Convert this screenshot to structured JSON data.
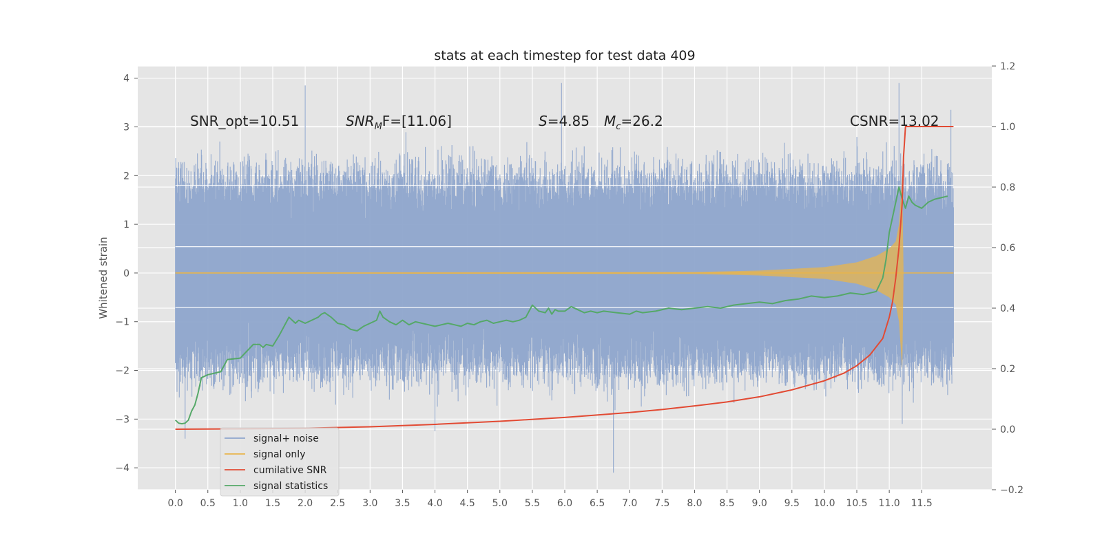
{
  "chart_data": {
    "type": "line",
    "title": "stats at each timestep for test data 409",
    "xlabel": "",
    "ylabel": "Whitened strain",
    "y2label": "",
    "xlim": [
      -0.58,
      12.58
    ],
    "ylim": [
      -4.45,
      4.25
    ],
    "y2lim": [
      -0.2,
      1.2
    ],
    "xticks": [
      "0.0",
      "0.5",
      "1.0",
      "1.5",
      "2.0",
      "2.5",
      "3.0",
      "3.5",
      "4.0",
      "4.5",
      "5.0",
      "5.5",
      "6.0",
      "6.5",
      "7.0",
      "7.5",
      "8.0",
      "8.5",
      "9.0",
      "9.5",
      "10.0",
      "10.5",
      "11.0",
      "11.5"
    ],
    "yticks": [
      "−4",
      "−3",
      "−2",
      "−1",
      "0",
      "1",
      "2",
      "3",
      "4"
    ],
    "y2ticks": [
      "−0.2",
      "0.0",
      "0.2",
      "0.4",
      "0.6",
      "0.8",
      "1.0",
      "1.2"
    ],
    "grid": true,
    "legend_position": "lower-left",
    "annotations": {
      "snr_opt": "SNR_opt=10.51",
      "snr_mf_symbol": "SNR",
      "snr_mf_sub": "M",
      "snr_mf_rest": "F=[11.06]",
      "s_symbol": "S",
      "s_value": "=4.85",
      "mc_symbol": "M",
      "mc_sub": "c",
      "mc_value": "=26.2",
      "csnr": "CSNR=13.02"
    },
    "series": [
      {
        "name": "signal+ noise",
        "color": "#8ea5cc",
        "axis": "left",
        "x_range": [
          0.0,
          11.99
        ],
        "envelope_lower_typical": -1.8,
        "envelope_upper_typical": 1.8,
        "extreme_peaks_x": [
          2.0,
          5.95,
          11.15,
          11.95
        ],
        "extreme_peaks_y": [
          3.85,
          3.9,
          3.9,
          3.35
        ],
        "extreme_troughs_x": [
          0.15,
          4.0,
          6.75,
          11.2
        ],
        "extreme_troughs_y": [
          -3.4,
          -3.25,
          -4.1,
          -3.1
        ]
      },
      {
        "name": "signal only",
        "color": "#e8b54c",
        "axis": "left",
        "x": [
          0,
          8,
          9,
          10,
          10.5,
          10.8,
          11.0,
          11.1,
          11.15,
          11.2,
          11.22,
          11.99
        ],
        "amplitude": [
          0.01,
          0.02,
          0.05,
          0.12,
          0.22,
          0.35,
          0.5,
          0.65,
          1.0,
          2.0,
          0.0,
          0.0
        ]
      },
      {
        "name": "cumilative SNR",
        "color": "#e24a33",
        "axis": "right",
        "x": [
          0,
          1,
          2,
          3,
          4,
          5,
          6,
          7,
          7.5,
          8,
          8.5,
          9,
          9.5,
          10,
          10.3,
          10.5,
          10.7,
          10.9,
          11.0,
          11.05,
          11.1,
          11.15,
          11.2,
          11.22,
          11.25,
          11.3,
          11.99
        ],
        "values": [
          0,
          0.001,
          0.003,
          0.008,
          0.016,
          0.026,
          0.039,
          0.055,
          0.065,
          0.077,
          0.09,
          0.107,
          0.13,
          0.16,
          0.185,
          0.21,
          0.245,
          0.3,
          0.37,
          0.42,
          0.5,
          0.6,
          0.75,
          0.9,
          1.0,
          1.0,
          1.0
        ]
      },
      {
        "name": "signal statistics",
        "color": "#55a868",
        "axis": "right",
        "x": [
          0,
          0.05,
          0.1,
          0.15,
          0.2,
          0.25,
          0.3,
          0.35,
          0.4,
          0.5,
          0.6,
          0.7,
          0.8,
          1.0,
          1.2,
          1.3,
          1.35,
          1.4,
          1.5,
          1.6,
          1.65,
          1.7,
          1.75,
          1.8,
          1.85,
          1.9,
          2.0,
          2.1,
          2.2,
          2.25,
          2.3,
          2.4,
          2.5,
          2.6,
          2.7,
          2.8,
          2.9,
          3.0,
          3.1,
          3.15,
          3.2,
          3.3,
          3.4,
          3.5,
          3.6,
          3.7,
          3.8,
          3.9,
          4.0,
          4.1,
          4.2,
          4.3,
          4.4,
          4.5,
          4.6,
          4.7,
          4.8,
          4.9,
          5.0,
          5.1,
          5.2,
          5.3,
          5.4,
          5.5,
          5.6,
          5.7,
          5.75,
          5.8,
          5.85,
          5.9,
          6.0,
          6.1,
          6.2,
          6.3,
          6.4,
          6.5,
          6.6,
          6.8,
          7.0,
          7.1,
          7.2,
          7.4,
          7.6,
          7.8,
          8.0,
          8.2,
          8.4,
          8.6,
          8.8,
          9.0,
          9.2,
          9.4,
          9.6,
          9.8,
          10.0,
          10.2,
          10.4,
          10.6,
          10.8,
          10.9,
          10.95,
          11.0,
          11.05,
          11.1,
          11.15,
          11.2,
          11.25,
          11.3,
          11.35,
          11.4,
          11.5,
          11.6,
          11.7,
          11.8,
          11.9
        ],
        "values": [
          0.03,
          0.02,
          0.018,
          0.02,
          0.03,
          0.06,
          0.08,
          0.12,
          0.17,
          0.18,
          0.185,
          0.19,
          0.23,
          0.235,
          0.28,
          0.28,
          0.27,
          0.28,
          0.275,
          0.31,
          0.33,
          0.35,
          0.37,
          0.36,
          0.35,
          0.36,
          0.35,
          0.36,
          0.37,
          0.38,
          0.385,
          0.37,
          0.35,
          0.345,
          0.33,
          0.325,
          0.34,
          0.35,
          0.36,
          0.39,
          0.37,
          0.355,
          0.345,
          0.36,
          0.345,
          0.355,
          0.35,
          0.345,
          0.34,
          0.345,
          0.35,
          0.345,
          0.34,
          0.35,
          0.345,
          0.355,
          0.36,
          0.35,
          0.355,
          0.36,
          0.355,
          0.36,
          0.37,
          0.41,
          0.39,
          0.385,
          0.4,
          0.38,
          0.395,
          0.39,
          0.39,
          0.405,
          0.395,
          0.385,
          0.39,
          0.385,
          0.39,
          0.385,
          0.38,
          0.39,
          0.385,
          0.39,
          0.4,
          0.395,
          0.4,
          0.405,
          0.4,
          0.41,
          0.415,
          0.42,
          0.415,
          0.425,
          0.43,
          0.44,
          0.435,
          0.44,
          0.45,
          0.445,
          0.455,
          0.5,
          0.56,
          0.65,
          0.7,
          0.75,
          0.8,
          0.76,
          0.73,
          0.77,
          0.75,
          0.74,
          0.73,
          0.75,
          0.76,
          0.765,
          0.77
        ]
      }
    ]
  }
}
